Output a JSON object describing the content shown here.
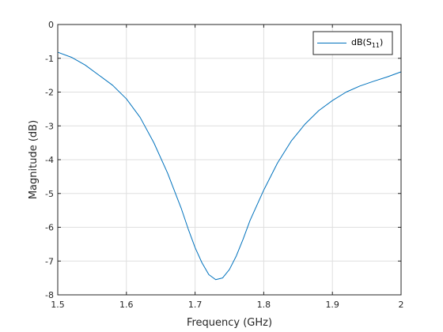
{
  "chart_data": {
    "type": "line",
    "xlabel": "Frequency (GHz)",
    "ylabel": "Magnitude (dB)",
    "xlim": [
      1.5,
      2.0
    ],
    "ylim": [
      -8,
      0
    ],
    "xticks": [
      1.5,
      1.6,
      1.7,
      1.8,
      1.9,
      2.0
    ],
    "xtick_labels": [
      "1.5",
      "1.6",
      "1.7",
      "1.8",
      "1.9",
      "2"
    ],
    "yticks": [
      0,
      -1,
      -2,
      -3,
      -4,
      -5,
      -6,
      -7,
      -8
    ],
    "ytick_labels": [
      "0",
      "-1",
      "-2",
      "-3",
      "-4",
      "-5",
      "-6",
      "-7",
      "-8"
    ],
    "grid": true,
    "legend_position": "top-right",
    "series": [
      {
        "name": "dB(S11)",
        "color": "#0072bd",
        "x": [
          1.5,
          1.52,
          1.54,
          1.56,
          1.58,
          1.6,
          1.62,
          1.64,
          1.66,
          1.68,
          1.69,
          1.7,
          1.71,
          1.72,
          1.73,
          1.74,
          1.75,
          1.76,
          1.77,
          1.78,
          1.8,
          1.82,
          1.84,
          1.86,
          1.88,
          1.9,
          1.92,
          1.94,
          1.96,
          1.98,
          2.0
        ],
        "y": [
          -0.82,
          -0.97,
          -1.2,
          -1.5,
          -1.8,
          -2.2,
          -2.75,
          -3.5,
          -4.4,
          -5.45,
          -6.05,
          -6.6,
          -7.05,
          -7.4,
          -7.55,
          -7.5,
          -7.25,
          -6.85,
          -6.35,
          -5.8,
          -4.9,
          -4.1,
          -3.45,
          -2.95,
          -2.55,
          -2.25,
          -2.0,
          -1.82,
          -1.68,
          -1.55,
          -1.4
        ]
      }
    ]
  }
}
